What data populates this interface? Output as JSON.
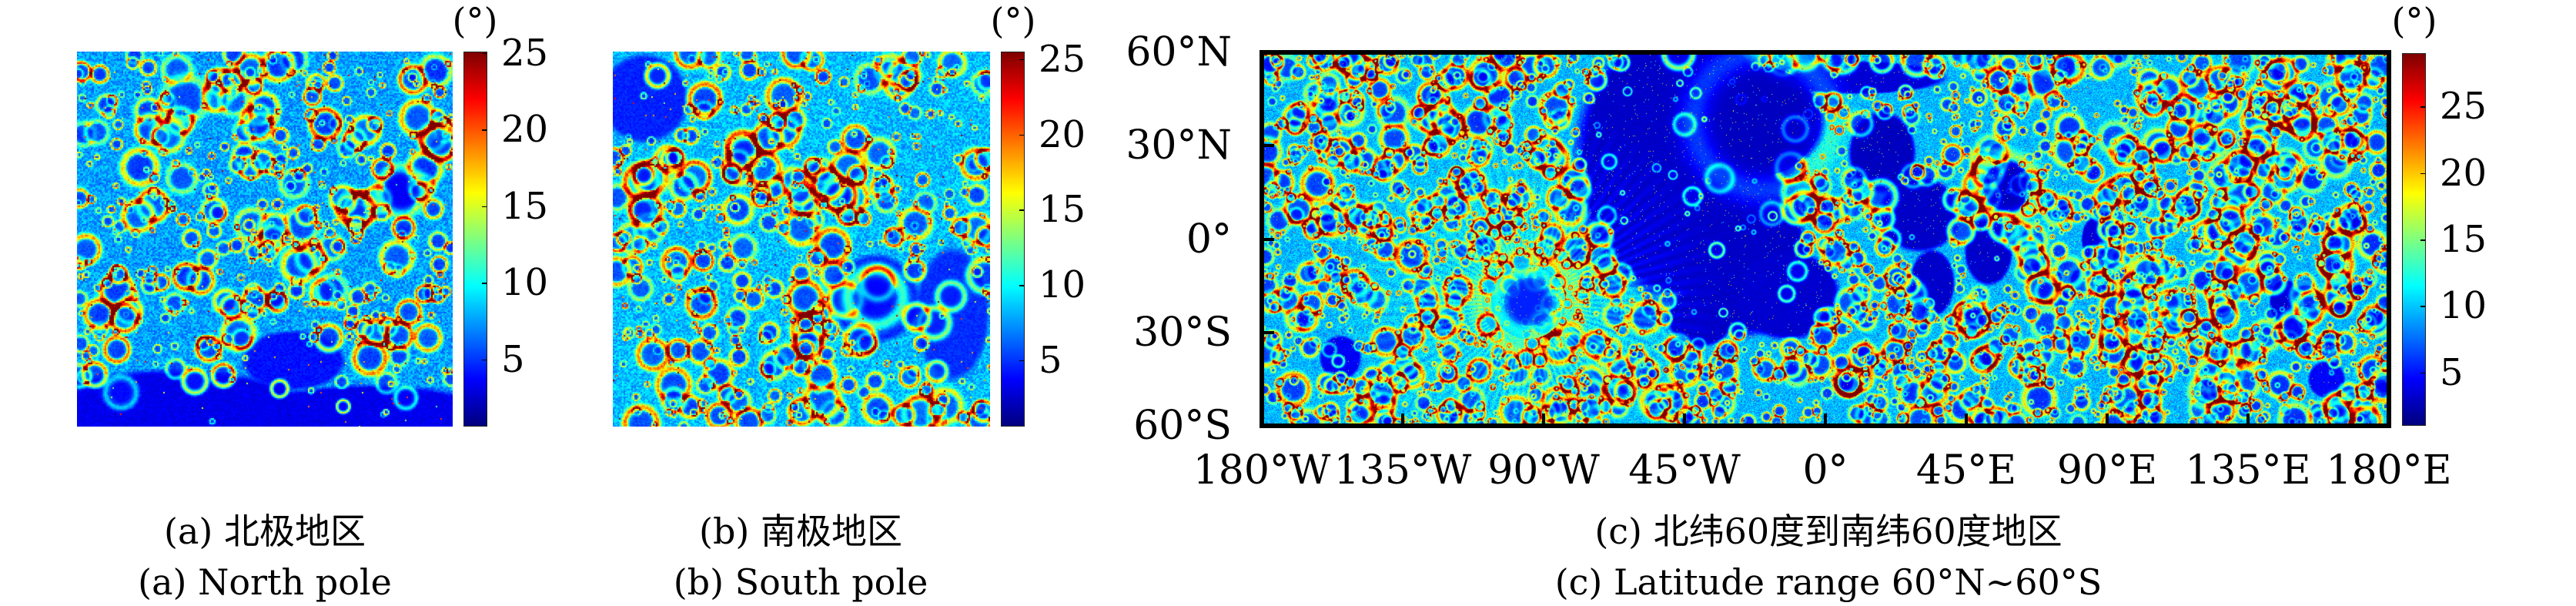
{
  "colormap": "jet",
  "colors": {
    "jet_low": "#00007f",
    "jet_blue": "#0000ff",
    "jet_cyan": "#00ffff",
    "jet_yellow": "#ffff00",
    "jet_red": "#ff0000",
    "jet_high": "#7f0000",
    "frame": "#000000"
  },
  "chart_data": [
    {
      "type": "heatmap",
      "id": "a",
      "title": "",
      "caption_cn": "(a) 北极地区",
      "caption_en": "(a) North pole",
      "colorbar": {
        "unit_label": "(°)",
        "range": [
          0.6,
          25.1
        ],
        "ticks": [
          25,
          20,
          15,
          10,
          5
        ],
        "tick_labels": [
          "25",
          "20",
          "15",
          "10",
          "5"
        ]
      },
      "xlabel": "",
      "ylabel": ""
    },
    {
      "type": "heatmap",
      "id": "b",
      "title": "",
      "caption_cn": "(b) 南极地区",
      "caption_en": "(b) South pole",
      "colorbar": {
        "unit_label": "(°)",
        "range": [
          0.6,
          25.5
        ],
        "ticks": [
          25,
          20,
          15,
          10,
          5
        ],
        "tick_labels": [
          "25",
          "20",
          "15",
          "10",
          "5"
        ]
      },
      "xlabel": "",
      "ylabel": ""
    },
    {
      "type": "heatmap",
      "id": "c",
      "title": "",
      "caption_cn": "(c) 北纬60度到南纬60度地区",
      "caption_en": "(c) Latitude range 60°N∼60°S",
      "colorbar": {
        "unit_label": "(°)",
        "range": [
          1,
          29
        ],
        "ticks": [
          25,
          20,
          15,
          10,
          5
        ],
        "tick_labels": [
          "25",
          "20",
          "15",
          "10",
          "5"
        ]
      },
      "x": {
        "range": [
          -180,
          180
        ],
        "ticks": [
          -180,
          -135,
          -90,
          -45,
          0,
          45,
          90,
          135,
          180
        ],
        "tick_labels": [
          "180°W",
          "135°W",
          "90°W",
          "45°W",
          "0°",
          "45°E",
          "90°E",
          "135°E",
          "180°E"
        ]
      },
      "y": {
        "range": [
          -60,
          60
        ],
        "ticks": [
          60,
          30,
          0,
          -30,
          -60
        ],
        "tick_labels": [
          "60°N",
          "30°N",
          "0°",
          "30°S",
          "60°S"
        ]
      },
      "xlabel": "",
      "ylabel": ""
    }
  ]
}
